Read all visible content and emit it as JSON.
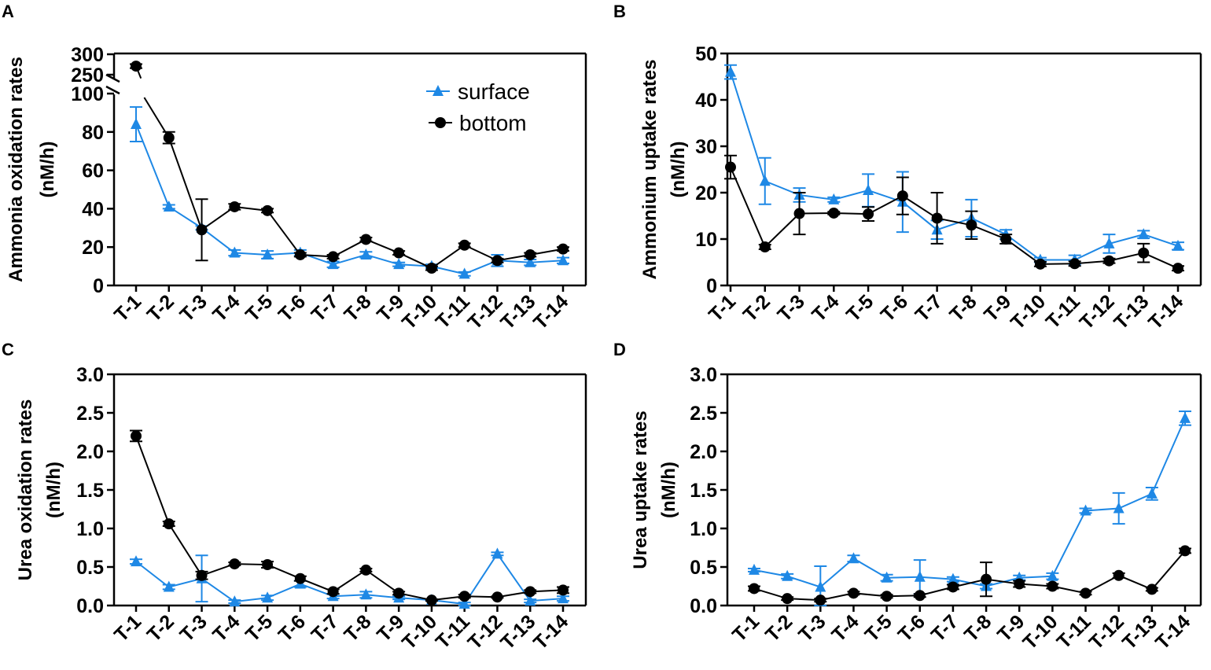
{
  "colors": {
    "surface": "#1e88e5",
    "bottom": "#000000"
  },
  "legend": {
    "surface": "surface",
    "bottom": "bottom"
  },
  "chart_data": [
    {
      "panel": "A",
      "type": "line",
      "ylabel": [
        "Ammonia oxidation rates",
        "(nM/h)"
      ],
      "categories": [
        "T-1",
        "T-2",
        "T-3",
        "T-4",
        "T-5",
        "T-6",
        "T-7",
        "T-8",
        "T-9",
        "T-10",
        "T-11",
        "T-12",
        "T-13",
        "T-14"
      ],
      "ylim": [
        0,
        300
      ],
      "axis_break": [
        100,
        250
      ],
      "yticks": [
        0,
        20,
        40,
        60,
        80,
        100,
        250,
        300
      ],
      "series": [
        {
          "name": "surface",
          "marker": "triangle",
          "values": [
            84,
            41,
            30,
            17,
            16,
            17,
            11,
            16,
            11,
            10,
            6,
            13,
            12,
            13
          ],
          "error": [
            9,
            1,
            1,
            1.5,
            2,
            1.5,
            1.5,
            1.5,
            1,
            1,
            1,
            3,
            1.5,
            1.5
          ]
        },
        {
          "name": "bottom",
          "marker": "circle",
          "values": [
            271,
            77,
            29,
            41,
            39,
            16,
            15,
            24,
            17,
            9,
            21,
            13,
            16,
            19
          ],
          "error": [
            5,
            3,
            16,
            1.5,
            1,
            1,
            1,
            1,
            1,
            1,
            1,
            1,
            1,
            1
          ]
        }
      ],
      "legend_position": "top-right"
    },
    {
      "panel": "B",
      "type": "line",
      "ylabel": [
        "Ammonium uptake rates",
        "(nM/h)"
      ],
      "categories": [
        "T-1",
        "T-2",
        "T-3",
        "T-4",
        "T-5",
        "T-6",
        "T-7",
        "T-8",
        "T-9",
        "T-10",
        "T-11",
        "T-12",
        "T-13",
        "T-14"
      ],
      "ylim": [
        0,
        50
      ],
      "yticks": [
        0,
        10,
        20,
        30,
        40,
        50
      ],
      "series": [
        {
          "name": "surface",
          "marker": "triangle",
          "values": [
            46,
            22.5,
            19.5,
            18.5,
            20.5,
            18,
            12,
            14.5,
            11,
            5.5,
            5.5,
            9,
            11,
            8.5
          ],
          "error": [
            1.5,
            5,
            1.5,
            0.5,
            3.5,
            6.5,
            2,
            4,
            1,
            0.5,
            1,
            2,
            0.8,
            0.8
          ]
        },
        {
          "name": "bottom",
          "marker": "circle",
          "values": [
            25.5,
            8.3,
            15.5,
            15.6,
            15.4,
            19.3,
            14.5,
            13,
            10,
            4.6,
            4.7,
            5.3,
            7,
            3.7
          ],
          "error": [
            2.5,
            0.5,
            4.5,
            0.3,
            1.5,
            4,
            5.5,
            3,
            1,
            0.5,
            0.5,
            0.5,
            2,
            0.5
          ]
        }
      ]
    },
    {
      "panel": "C",
      "type": "line",
      "ylabel": [
        "Urea oxidation rates",
        "(nM/h)"
      ],
      "categories": [
        "T-1",
        "T-2",
        "T-3",
        "T-4",
        "T-5",
        "T-6",
        "T-7",
        "T-8",
        "T-9",
        "T-10",
        "T-11",
        "T-12",
        "T-13",
        "T-14"
      ],
      "ylim": [
        0,
        3
      ],
      "yticks": [
        "0.0",
        "0.5",
        "1.0",
        "1.5",
        "2.0",
        "2.5",
        "3.0"
      ],
      "series": [
        {
          "name": "surface",
          "marker": "triangle",
          "values": [
            0.57,
            0.24,
            0.35,
            0.05,
            0.1,
            0.28,
            0.12,
            0.14,
            0.1,
            0.07,
            0.02,
            0.67,
            0.06,
            0.09
          ],
          "error": [
            0.03,
            0.03,
            0.3,
            0.02,
            0.03,
            0.04,
            0.03,
            0.04,
            0.02,
            0.01,
            0.02,
            0.02,
            0.02,
            0.03
          ]
        },
        {
          "name": "bottom",
          "marker": "circle",
          "values": [
            2.2,
            1.06,
            0.39,
            0.54,
            0.53,
            0.35,
            0.18,
            0.46,
            0.16,
            0.07,
            0.12,
            0.11,
            0.18,
            0.2
          ],
          "error": [
            0.07,
            0.03,
            0.05,
            0.02,
            0.04,
            0.03,
            0.03,
            0.02,
            0.02,
            0.01,
            0.02,
            0.01,
            0.02,
            0.04
          ]
        }
      ]
    },
    {
      "panel": "D",
      "type": "line",
      "ylabel": [
        "Urea uptake rates",
        "(nM/h)"
      ],
      "categories": [
        "T-1",
        "T-2",
        "T-3",
        "T-4",
        "T-5",
        "T-6",
        "T-7",
        "T-8",
        "T-9",
        "T-10",
        "T-11",
        "T-12",
        "T-13",
        "T-14"
      ],
      "ylim": [
        0,
        3
      ],
      "yticks": [
        "0.0",
        "0.5",
        "1.0",
        "1.5",
        "2.0",
        "2.5",
        "3.0"
      ],
      "series": [
        {
          "name": "surface",
          "marker": "triangle",
          "values": [
            0.46,
            0.38,
            0.24,
            0.61,
            0.36,
            0.37,
            0.34,
            0.25,
            0.36,
            0.38,
            1.23,
            1.26,
            1.45,
            2.43
          ],
          "error": [
            0.02,
            0.03,
            0.27,
            0.04,
            0.04,
            0.22,
            0.03,
            0.03,
            0.03,
            0.04,
            0.03,
            0.2,
            0.08,
            0.09
          ]
        },
        {
          "name": "bottom",
          "marker": "circle",
          "values": [
            0.22,
            0.09,
            0.07,
            0.16,
            0.12,
            0.13,
            0.24,
            0.34,
            0.28,
            0.25,
            0.16,
            0.39,
            0.21,
            0.71
          ],
          "error": [
            0.03,
            0.02,
            0.02,
            0.02,
            0.02,
            0.02,
            0.03,
            0.22,
            0.04,
            0.03,
            0.02,
            0.03,
            0.02,
            0.03
          ]
        }
      ]
    }
  ]
}
